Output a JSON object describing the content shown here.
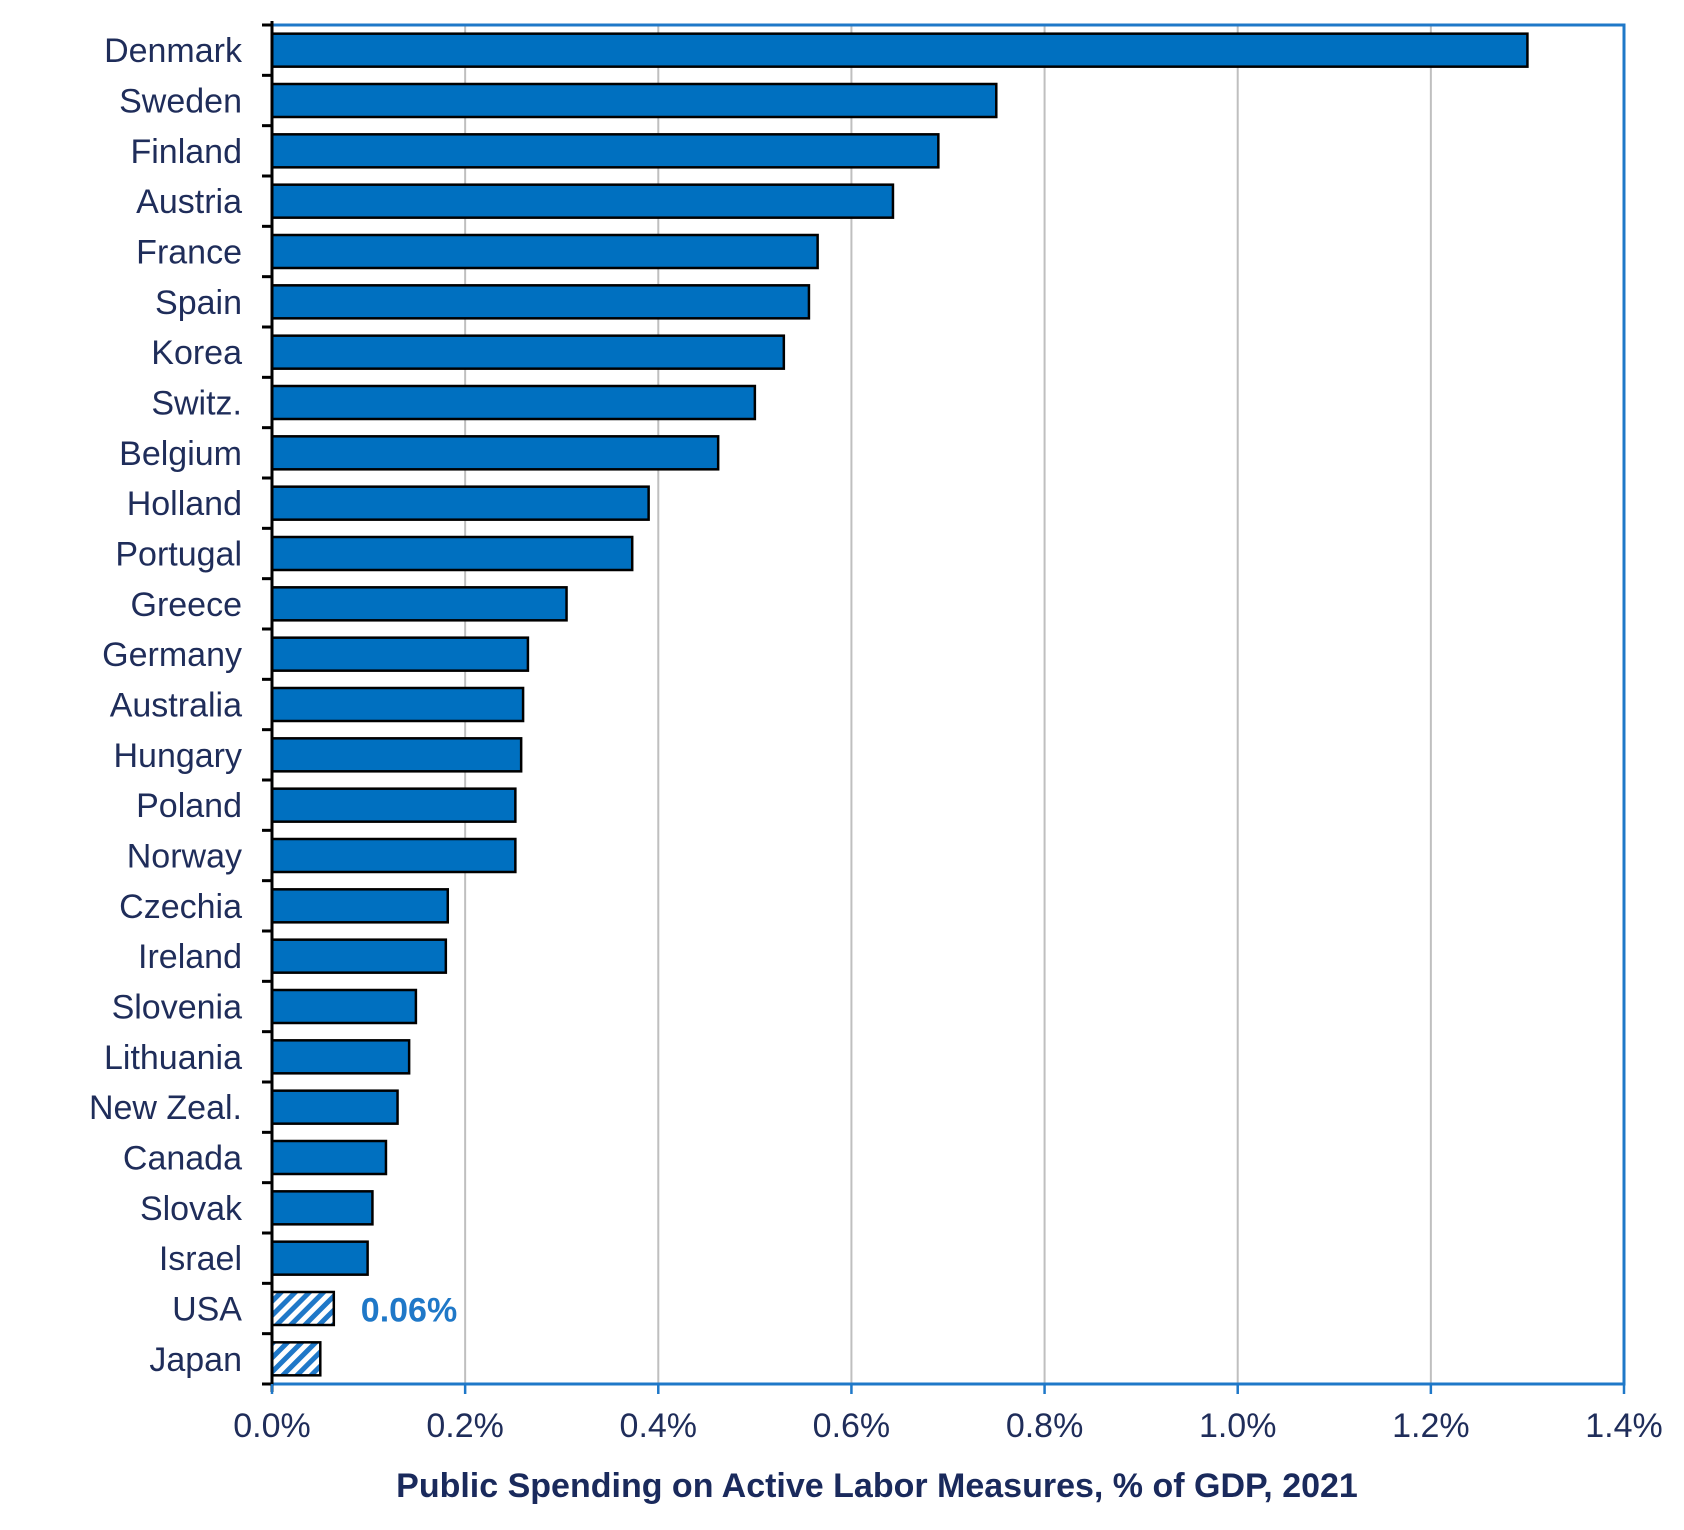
{
  "chart_data": {
    "type": "bar",
    "orientation": "horizontal",
    "categories": [
      "Denmark",
      "Sweden",
      "Finland",
      "Austria",
      "France",
      "Spain",
      "Korea",
      "Switz.",
      "Belgium",
      "Holland",
      "Portugal",
      "Greece",
      "Germany",
      "Australia",
      "Hungary",
      "Poland",
      "Norway",
      "Czechia",
      "Ireland",
      "Slovenia",
      "Lithuania",
      "New Zeal.",
      "Canada",
      "Slovak",
      "Israel",
      "USA",
      "Japan"
    ],
    "values": [
      1.3,
      0.75,
      0.69,
      0.643,
      0.565,
      0.556,
      0.53,
      0.5,
      0.462,
      0.39,
      0.373,
      0.305,
      0.265,
      0.26,
      0.258,
      0.252,
      0.252,
      0.182,
      0.18,
      0.149,
      0.142,
      0.13,
      0.118,
      0.104,
      0.099,
      0.064,
      0.05
    ],
    "highlight": [
      "USA",
      "Japan"
    ],
    "annotations": [
      {
        "category": "USA",
        "text": "0.06%"
      }
    ],
    "xlabel": "Public Spending on Active Labor Measures, % of GDP, 2021",
    "ylabel": "",
    "xlim": [
      0,
      1.4
    ],
    "ticks": [
      0,
      0.2,
      0.4,
      0.6,
      0.8,
      1.0,
      1.2,
      1.4
    ],
    "tick_labels": [
      "0.0%",
      "0.2%",
      "0.4%",
      "0.6%",
      "0.8%",
      "1.0%",
      "1.2%",
      "1.4%"
    ],
    "grid": true,
    "colors": {
      "bar": "#0070c0",
      "bar_outline": "#000000",
      "frame": "#1f78c8",
      "grid": "#bfbfbf",
      "annotation": "#1f78c8",
      "text": "#1f2d5a"
    }
  }
}
